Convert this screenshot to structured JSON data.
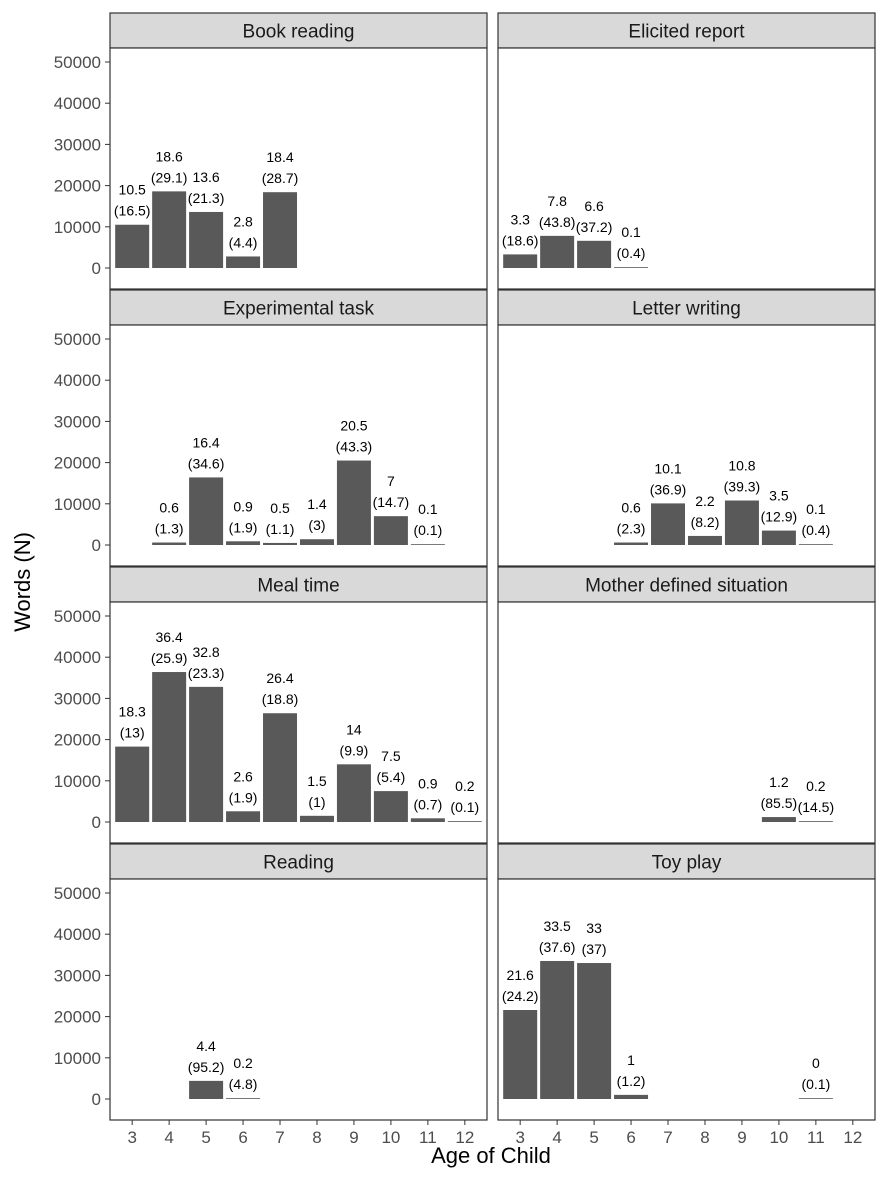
{
  "chart_data": {
    "type": "bar",
    "layout": "facet-grid",
    "xlabel": "Age of Child",
    "ylabel": "Words (N)",
    "x_categories": [
      "3",
      "4",
      "5",
      "6",
      "7",
      "8",
      "9",
      "10",
      "11",
      "12"
    ],
    "y_ticks": [
      0,
      10000,
      20000,
      30000,
      40000,
      50000
    ],
    "ylim": [
      0,
      52000
    ],
    "grid": false,
    "bar_color": "#595959",
    "strip_color": "#d9d9d9",
    "panels": [
      {
        "title": "Book reading",
        "bars": [
          {
            "x": "3",
            "value": 10500,
            "label_top": "10.5",
            "label_bottom": "(16.5)"
          },
          {
            "x": "4",
            "value": 18600,
            "label_top": "18.6",
            "label_bottom": "(29.1)"
          },
          {
            "x": "5",
            "value": 13600,
            "label_top": "13.6",
            "label_bottom": "(21.3)"
          },
          {
            "x": "6",
            "value": 2800,
            "label_top": "2.8",
            "label_bottom": "(4.4)"
          },
          {
            "x": "7",
            "value": 18400,
            "label_top": "18.4",
            "label_bottom": "(28.7)"
          }
        ]
      },
      {
        "title": "Elicited report",
        "bars": [
          {
            "x": "3",
            "value": 3300,
            "label_top": "3.3",
            "label_bottom": "(18.6)"
          },
          {
            "x": "4",
            "value": 7800,
            "label_top": "7.8",
            "label_bottom": "(43.8)"
          },
          {
            "x": "5",
            "value": 6600,
            "label_top": "6.6",
            "label_bottom": "(37.2)"
          },
          {
            "x": "6",
            "value": 100,
            "label_top": "0.1",
            "label_bottom": "(0.4)"
          }
        ]
      },
      {
        "title": "Experimental task",
        "bars": [
          {
            "x": "4",
            "value": 600,
            "label_top": "0.6",
            "label_bottom": "(1.3)"
          },
          {
            "x": "5",
            "value": 16400,
            "label_top": "16.4",
            "label_bottom": "(34.6)"
          },
          {
            "x": "6",
            "value": 900,
            "label_top": "0.9",
            "label_bottom": "(1.9)"
          },
          {
            "x": "7",
            "value": 500,
            "label_top": "0.5",
            "label_bottom": "(1.1)"
          },
          {
            "x": "8",
            "value": 1400,
            "label_top": "1.4",
            "label_bottom": "(3)"
          },
          {
            "x": "9",
            "value": 20500,
            "label_top": "20.5",
            "label_bottom": "(43.3)"
          },
          {
            "x": "10",
            "value": 7000,
            "label_top": "7",
            "label_bottom": "(14.7)"
          },
          {
            "x": "11",
            "value": 100,
            "label_top": "0.1",
            "label_bottom": "(0.1)"
          }
        ]
      },
      {
        "title": "Letter writing",
        "bars": [
          {
            "x": "6",
            "value": 600,
            "label_top": "0.6",
            "label_bottom": "(2.3)"
          },
          {
            "x": "7",
            "value": 10100,
            "label_top": "10.1",
            "label_bottom": "(36.9)"
          },
          {
            "x": "8",
            "value": 2200,
            "label_top": "2.2",
            "label_bottom": "(8.2)"
          },
          {
            "x": "9",
            "value": 10800,
            "label_top": "10.8",
            "label_bottom": "(39.3)"
          },
          {
            "x": "10",
            "value": 3500,
            "label_top": "3.5",
            "label_bottom": "(12.9)"
          },
          {
            "x": "11",
            "value": 100,
            "label_top": "0.1",
            "label_bottom": "(0.4)"
          }
        ]
      },
      {
        "title": "Meal time",
        "bars": [
          {
            "x": "3",
            "value": 18300,
            "label_top": "18.3",
            "label_bottom": "(13)"
          },
          {
            "x": "4",
            "value": 36400,
            "label_top": "36.4",
            "label_bottom": "(25.9)"
          },
          {
            "x": "5",
            "value": 32800,
            "label_top": "32.8",
            "label_bottom": "(23.3)"
          },
          {
            "x": "6",
            "value": 2600,
            "label_top": "2.6",
            "label_bottom": "(1.9)"
          },
          {
            "x": "7",
            "value": 26400,
            "label_top": "26.4",
            "label_bottom": "(18.8)"
          },
          {
            "x": "8",
            "value": 1500,
            "label_top": "1.5",
            "label_bottom": "(1)"
          },
          {
            "x": "9",
            "value": 14000,
            "label_top": "14",
            "label_bottom": "(9.9)"
          },
          {
            "x": "10",
            "value": 7500,
            "label_top": "7.5",
            "label_bottom": "(5.4)"
          },
          {
            "x": "11",
            "value": 900,
            "label_top": "0.9",
            "label_bottom": "(0.7)"
          },
          {
            "x": "12",
            "value": 200,
            "label_top": "0.2",
            "label_bottom": "(0.1)"
          }
        ]
      },
      {
        "title": "Mother defined situation",
        "bars": [
          {
            "x": "10",
            "value": 1200,
            "label_top": "1.2",
            "label_bottom": "(85.5)"
          },
          {
            "x": "11",
            "value": 200,
            "label_top": "0.2",
            "label_bottom": "(14.5)"
          }
        ]
      },
      {
        "title": "Reading",
        "bars": [
          {
            "x": "5",
            "value": 4400,
            "label_top": "4.4",
            "label_bottom": "(95.2)"
          },
          {
            "x": "6",
            "value": 200,
            "label_top": "0.2",
            "label_bottom": "(4.8)"
          }
        ]
      },
      {
        "title": "Toy play",
        "bars": [
          {
            "x": "3",
            "value": 21600,
            "label_top": "21.6",
            "label_bottom": "(24.2)"
          },
          {
            "x": "4",
            "value": 33500,
            "label_top": "33.5",
            "label_bottom": "(37.6)"
          },
          {
            "x": "5",
            "value": 33000,
            "label_top": "33",
            "label_bottom": "(37)"
          },
          {
            "x": "6",
            "value": 1000,
            "label_top": "1",
            "label_bottom": "(1.2)"
          },
          {
            "x": "11",
            "value": 0,
            "label_top": "0",
            "label_bottom": "(0.1)"
          }
        ]
      }
    ]
  }
}
